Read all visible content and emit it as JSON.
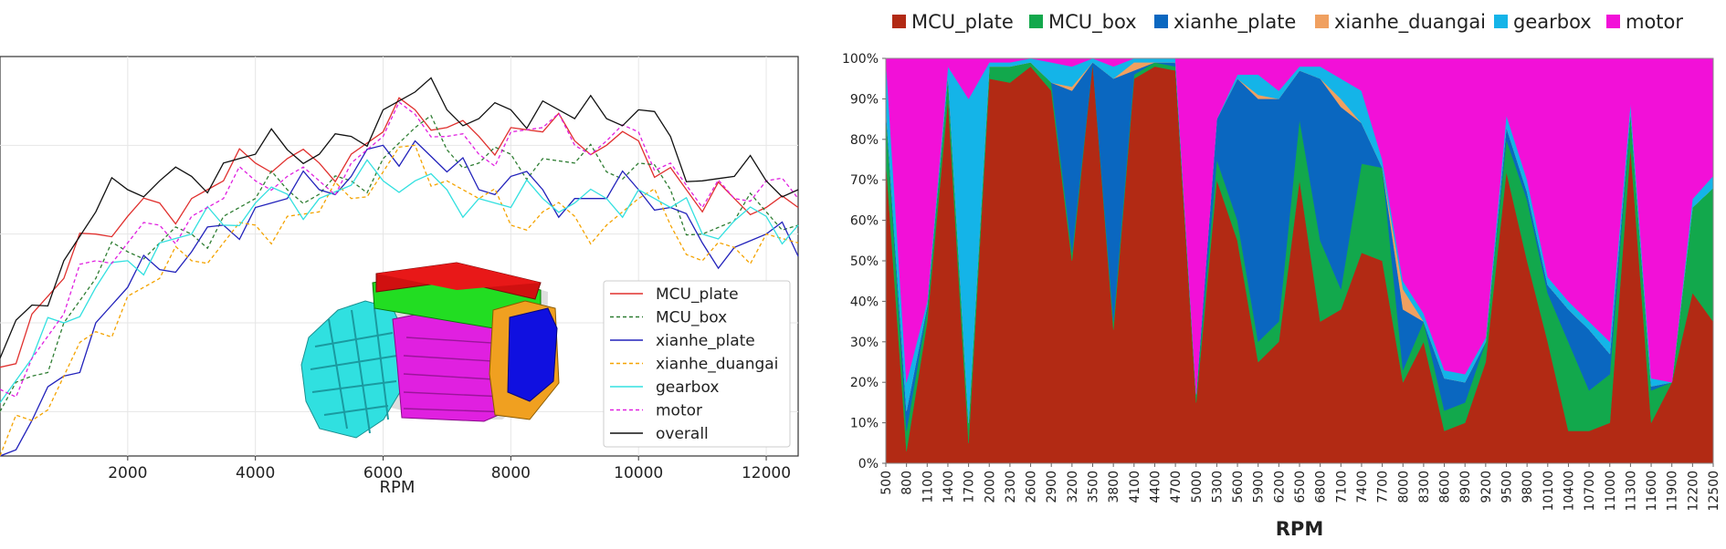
{
  "chart_data": [
    {
      "type": "line",
      "xlabel": "RPM",
      "xlim": [
        0,
        12500
      ],
      "xticks": [
        "2000",
        "4000",
        "6000",
        "8000",
        "10000",
        "12000"
      ],
      "grid": true,
      "legend_position": "bottom-right",
      "inset_image": "3d-motor-model",
      "x": [
        0,
        500,
        1000,
        1500,
        2000,
        2500,
        3000,
        3500,
        4000,
        4500,
        5000,
        5500,
        6000,
        6500,
        7000,
        7500,
        8000,
        8500,
        9000,
        9500,
        10000,
        10500,
        11000,
        11500,
        12000,
        12500
      ],
      "series": [
        {
          "name": "MCU_plate",
          "color": "#e0302e",
          "dash": "solid",
          "values": [
            20,
            32,
            40,
            50,
            54,
            57,
            58,
            62,
            66,
            67,
            66,
            68,
            73,
            78,
            74,
            72,
            74,
            73,
            71,
            70,
            71,
            65,
            55,
            58,
            56,
            56
          ]
        },
        {
          "name": "MCU_box",
          "color": "#2e7d32",
          "dash": "dashed",
          "values": [
            10,
            18,
            30,
            40,
            46,
            48,
            50,
            54,
            58,
            60,
            59,
            62,
            67,
            74,
            69,
            66,
            68,
            67,
            66,
            64,
            66,
            60,
            50,
            53,
            55,
            52
          ]
        },
        {
          "name": "xianhe_plate",
          "color": "#2222bb",
          "dash": "solid",
          "values": [
            0,
            8,
            18,
            30,
            38,
            42,
            46,
            52,
            56,
            58,
            60,
            63,
            70,
            71,
            64,
            60,
            63,
            60,
            58,
            58,
            60,
            56,
            48,
            47,
            50,
            45
          ]
        },
        {
          "name": "xianhe_duangai",
          "color": "#f4a300",
          "dash": "dashed",
          "values": [
            0,
            8,
            18,
            28,
            36,
            40,
            44,
            48,
            52,
            54,
            55,
            58,
            64,
            70,
            62,
            58,
            52,
            55,
            54,
            52,
            58,
            52,
            44,
            47,
            50,
            48
          ]
        },
        {
          "name": "gearbox",
          "color": "#33e0e0",
          "dash": "solid",
          "values": [
            12,
            22,
            30,
            38,
            44,
            48,
            50,
            52,
            57,
            59,
            58,
            61,
            62,
            62,
            60,
            58,
            56,
            58,
            57,
            58,
            60,
            56,
            50,
            53,
            54,
            52
          ]
        },
        {
          "name": "motor",
          "color": "#e020e0",
          "dash": "dashed",
          "values": [
            15,
            22,
            32,
            44,
            48,
            52,
            54,
            58,
            62,
            63,
            62,
            66,
            72,
            77,
            72,
            68,
            73,
            74,
            70,
            71,
            73,
            66,
            56,
            58,
            62,
            58
          ]
        },
        {
          "name": "overall",
          "color": "#111111",
          "dash": "solid",
          "values": [
            22,
            34,
            44,
            55,
            60,
            62,
            63,
            66,
            68,
            69,
            68,
            72,
            78,
            82,
            78,
            76,
            78,
            80,
            76,
            76,
            78,
            72,
            62,
            63,
            62,
            60
          ]
        }
      ]
    },
    {
      "type": "area",
      "stacked": "percent",
      "xlabel": "RPM",
      "yticks": [
        "0%",
        "10%",
        "20%",
        "30%",
        "40%",
        "50%",
        "60%",
        "70%",
        "80%",
        "90%",
        "100%"
      ],
      "xticks": [
        "500",
        "800",
        "1100",
        "1400",
        "1700",
        "2000",
        "2300",
        "2600",
        "2900",
        "3200",
        "3500",
        "3800",
        "4100",
        "4400",
        "4700",
        "5000",
        "5300",
        "5600",
        "5900",
        "6200",
        "6500",
        "6800",
        "7100",
        "7400",
        "7700",
        "8000",
        "8300",
        "8600",
        "8900",
        "9200",
        "9500",
        "9800",
        "10100",
        "10400",
        "10700",
        "11000",
        "11300",
        "11600",
        "11900",
        "12200",
        "12500"
      ],
      "legend_position": "top",
      "x": [
        500,
        800,
        1100,
        1400,
        1700,
        2000,
        2300,
        2600,
        2900,
        3200,
        3500,
        3800,
        4100,
        4400,
        4700,
        5000,
        5300,
        5600,
        5900,
        6200,
        6500,
        6800,
        7100,
        7400,
        7700,
        8000,
        8300,
        8600,
        8900,
        9200,
        9500,
        9800,
        10100,
        10400,
        10700,
        11000,
        11300,
        11600,
        11900,
        12200,
        12500
      ],
      "series": [
        {
          "name": "MCU_plate",
          "color": "#b22a14",
          "values": [
            75,
            3,
            35,
            90,
            5,
            95,
            94,
            98,
            92,
            50,
            99,
            33,
            95,
            98,
            97,
            15,
            70,
            55,
            25,
            30,
            70,
            35,
            38,
            52,
            50,
            20,
            30,
            8,
            10,
            25,
            72,
            50,
            30,
            8,
            8,
            10,
            78,
            10,
            20,
            40,
            35
          ]
        },
        {
          "name": "MCU_box",
          "color": "#12a84c",
          "values": [
            12,
            5,
            3,
            5,
            5,
            3,
            4,
            1,
            2,
            2,
            0,
            2,
            1,
            1,
            1,
            2,
            5,
            5,
            5,
            5,
            15,
            20,
            5,
            22,
            23,
            3,
            5,
            5,
            5,
            5,
            8,
            15,
            12,
            22,
            10,
            12,
            8,
            8,
            0,
            20,
            33
          ]
        },
        {
          "name": "xianhe_plate",
          "color": "#0a67c0",
          "values": [
            1,
            5,
            1,
            1,
            0,
            0,
            0,
            0,
            0,
            40,
            0,
            60,
            1,
            0,
            1,
            0,
            10,
            35,
            60,
            55,
            12,
            40,
            45,
            10,
            0,
            15,
            0,
            8,
            5,
            0,
            3,
            2,
            2,
            8,
            15,
            5,
            1,
            1,
            0,
            0,
            0
          ]
        },
        {
          "name": "xianhe_duangai",
          "color": "#f0a060",
          "values": [
            0,
            0,
            0,
            0,
            0,
            0,
            0,
            0,
            0,
            1,
            0,
            0,
            2,
            0,
            0,
            0,
            0,
            0,
            1,
            0,
            0,
            0,
            2,
            0,
            0,
            5,
            0,
            0,
            0,
            0,
            0,
            0,
            0,
            0,
            0,
            0,
            0,
            0,
            0,
            0,
            0
          ]
        },
        {
          "name": "gearbox",
          "color": "#14b4e8",
          "values": [
            12,
            7,
            1,
            2,
            80,
            1,
            1,
            1,
            5,
            5,
            1,
            3,
            1,
            1,
            1,
            0,
            0,
            1,
            5,
            2,
            1,
            3,
            5,
            8,
            2,
            2,
            2,
            2,
            2,
            1,
            3,
            3,
            2,
            2,
            2,
            3,
            2,
            2,
            0,
            2,
            3
          ]
        },
        {
          "name": "motor",
          "color": "#f210d8",
          "values": [
            0,
            80,
            60,
            2,
            10,
            1,
            1,
            0,
            1,
            2,
            0,
            2,
            0,
            0,
            0,
            83,
            15,
            4,
            4,
            8,
            2,
            2,
            5,
            8,
            25,
            55,
            63,
            77,
            78,
            69,
            14,
            30,
            54,
            60,
            65,
            70,
            11,
            79,
            80,
            33,
            29
          ]
        }
      ]
    }
  ]
}
